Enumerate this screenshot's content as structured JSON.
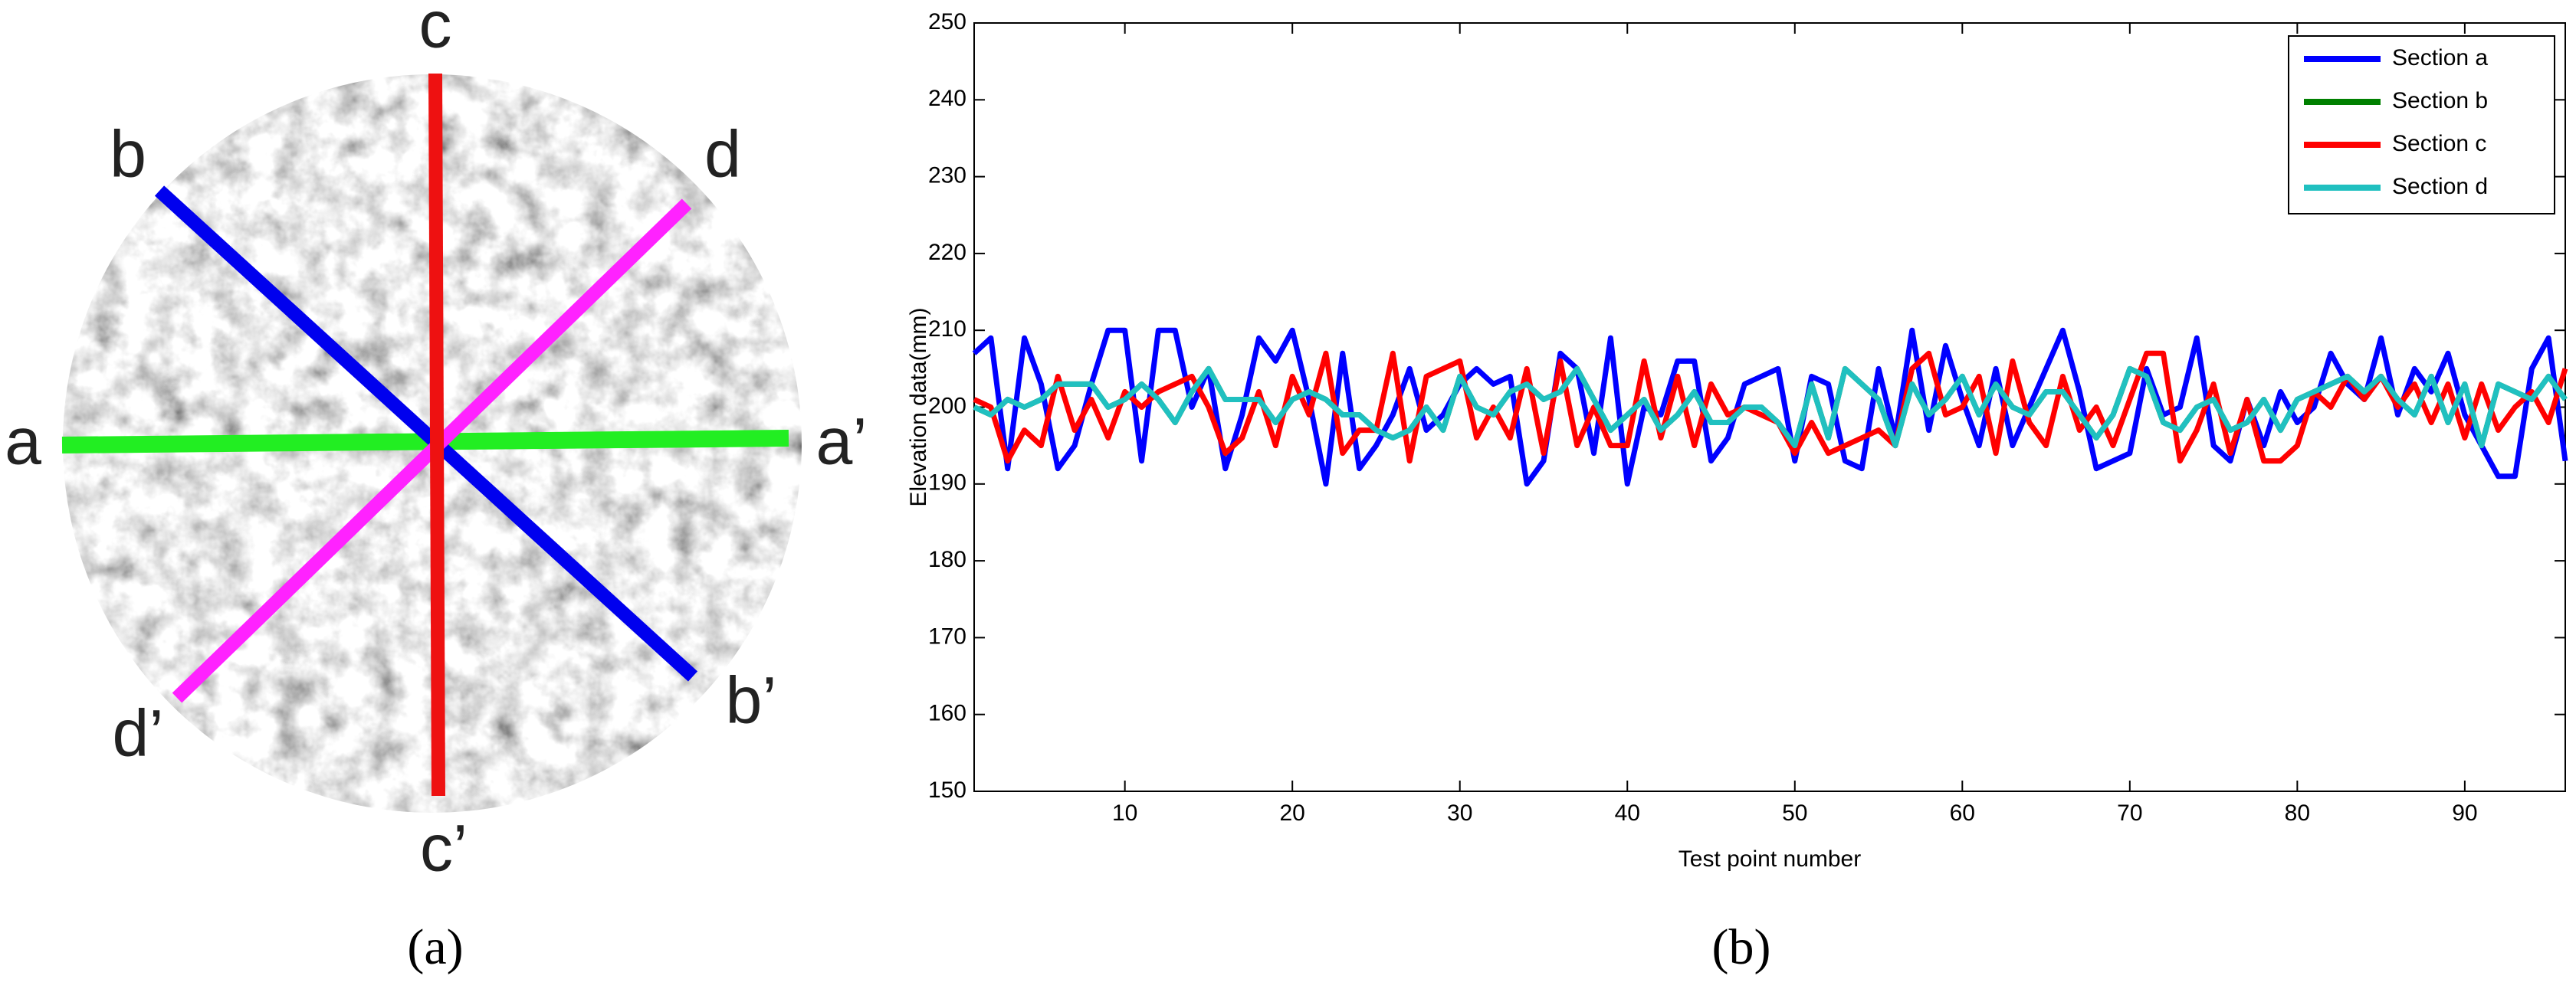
{
  "diagram": {
    "labels": {
      "a": "a",
      "a2": "a’",
      "b": "b",
      "b2": "b’",
      "c": "c",
      "c2": "c’",
      "d": "d",
      "d2": "d’"
    },
    "caption": "(a)"
  },
  "caption_b": "(b)",
  "chart_data": {
    "type": "line",
    "x_label": "Test point number",
    "y_label": "Elevation data(mm)",
    "xlim": [
      1,
      96
    ],
    "xticks": [
      10,
      20,
      30,
      40,
      50,
      60,
      70,
      80,
      90
    ],
    "ylim": [
      150,
      250
    ],
    "yticks": [
      150,
      160,
      170,
      180,
      190,
      200,
      210,
      220,
      230,
      240,
      250
    ],
    "legend": "upper right",
    "x": [
      1,
      2,
      3,
      4,
      5,
      6,
      7,
      8,
      9,
      10,
      11,
      12,
      13,
      14,
      15,
      16,
      17,
      18,
      19,
      20,
      21,
      22,
      23,
      24,
      25,
      26,
      27,
      28,
      29,
      30,
      31,
      32,
      33,
      34,
      35,
      36,
      37,
      38,
      39,
      40,
      41,
      42,
      43,
      44,
      45,
      46,
      47,
      48,
      49,
      50,
      51,
      52,
      53,
      54,
      55,
      56,
      57,
      58,
      59,
      60,
      61,
      62,
      63,
      64,
      65,
      66,
      67,
      68,
      69,
      70,
      71,
      72,
      73,
      74,
      75,
      76,
      77,
      78,
      79,
      80,
      81,
      82,
      83,
      84,
      85,
      86,
      87,
      88,
      89,
      90,
      91,
      92,
      93,
      94,
      95,
      96
    ],
    "series": [
      {
        "name": "Section a",
        "color": "#0000ff",
        "values": [
          207,
          209,
          192,
          209,
          203,
          192,
          195,
          203,
          210,
          210,
          193,
          210,
          210,
          200,
          205,
          192,
          199,
          209,
          206,
          210,
          201,
          190,
          207,
          192,
          195,
          199,
          205,
          197,
          199,
          203,
          205,
          203,
          204,
          190,
          193,
          207,
          205,
          194,
          209,
          190,
          200,
          199,
          206,
          206,
          193,
          196,
          203,
          204,
          205,
          193,
          204,
          203,
          193,
          192,
          205,
          196,
          210,
          197,
          208,
          201,
          195,
          205,
          195,
          200,
          205,
          210,
          202,
          192,
          193,
          194,
          205,
          199,
          200,
          209,
          195,
          193,
          201,
          195,
          202,
          198,
          200,
          207,
          203,
          201,
          209,
          199,
          205,
          202,
          207,
          199,
          195,
          191,
          191,
          205,
          209,
          193
        ]
      },
      {
        "name": "Section b",
        "color": "#008000",
        "values": [
          200,
          199,
          201,
          200,
          201,
          203,
          203,
          203,
          200,
          201,
          203,
          201,
          198,
          202,
          205,
          201,
          201,
          201,
          198,
          201,
          202,
          201,
          199,
          199,
          197,
          196,
          197,
          200,
          197,
          204,
          200,
          199,
          202,
          203,
          201,
          202,
          205,
          201,
          197,
          199,
          201,
          197,
          199,
          202,
          198,
          198,
          200,
          200,
          198,
          195,
          203,
          196,
          205,
          203,
          201,
          195,
          203,
          199,
          201,
          204,
          199,
          203,
          200,
          199,
          202,
          202,
          199,
          196,
          199,
          205,
          204,
          198,
          197,
          200,
          201,
          197,
          198,
          201,
          197,
          201,
          202,
          203,
          204,
          202,
          204,
          201,
          199,
          204,
          198,
          203,
          195,
          203,
          202,
          201,
          204,
          201
        ]
      },
      {
        "name": "Section c",
        "color": "#ff0000",
        "values": [
          201,
          200,
          193,
          197,
          195,
          204,
          197,
          201,
          196,
          202,
          200,
          202,
          203,
          204,
          200,
          194,
          196,
          202,
          195,
          204,
          199,
          207,
          194,
          197,
          197,
          207,
          193,
          204,
          205,
          206,
          196,
          200,
          196,
          205,
          194,
          206,
          195,
          200,
          195,
          195,
          206,
          196,
          204,
          195,
          203,
          199,
          200,
          199,
          198,
          194,
          198,
          194,
          195,
          196,
          197,
          195,
          205,
          207,
          199,
          200,
          204,
          194,
          206,
          198,
          195,
          204,
          197,
          200,
          195,
          201,
          207,
          207,
          193,
          197,
          203,
          194,
          201,
          193,
          193,
          195,
          202,
          200,
          204,
          201,
          204,
          200,
          203,
          198,
          203,
          196,
          203,
          197,
          200,
          202,
          198,
          205
        ]
      },
      {
        "name": "Section d",
        "color": "#20c0c0",
        "values": [
          200,
          199,
          201,
          200,
          201,
          203,
          203,
          203,
          200,
          201,
          203,
          201,
          198,
          202,
          205,
          201,
          201,
          201,
          198,
          201,
          202,
          201,
          199,
          199,
          197,
          196,
          197,
          200,
          197,
          204,
          200,
          199,
          202,
          203,
          201,
          202,
          205,
          201,
          197,
          199,
          201,
          197,
          199,
          202,
          198,
          198,
          200,
          200,
          198,
          195,
          203,
          196,
          205,
          203,
          201,
          195,
          203,
          199,
          201,
          204,
          199,
          203,
          200,
          199,
          202,
          202,
          199,
          196,
          199,
          205,
          204,
          198,
          197,
          200,
          201,
          197,
          198,
          201,
          197,
          201,
          202,
          203,
          204,
          202,
          204,
          201,
          199,
          204,
          198,
          203,
          195,
          203,
          202,
          201,
          204,
          201
        ]
      }
    ]
  }
}
